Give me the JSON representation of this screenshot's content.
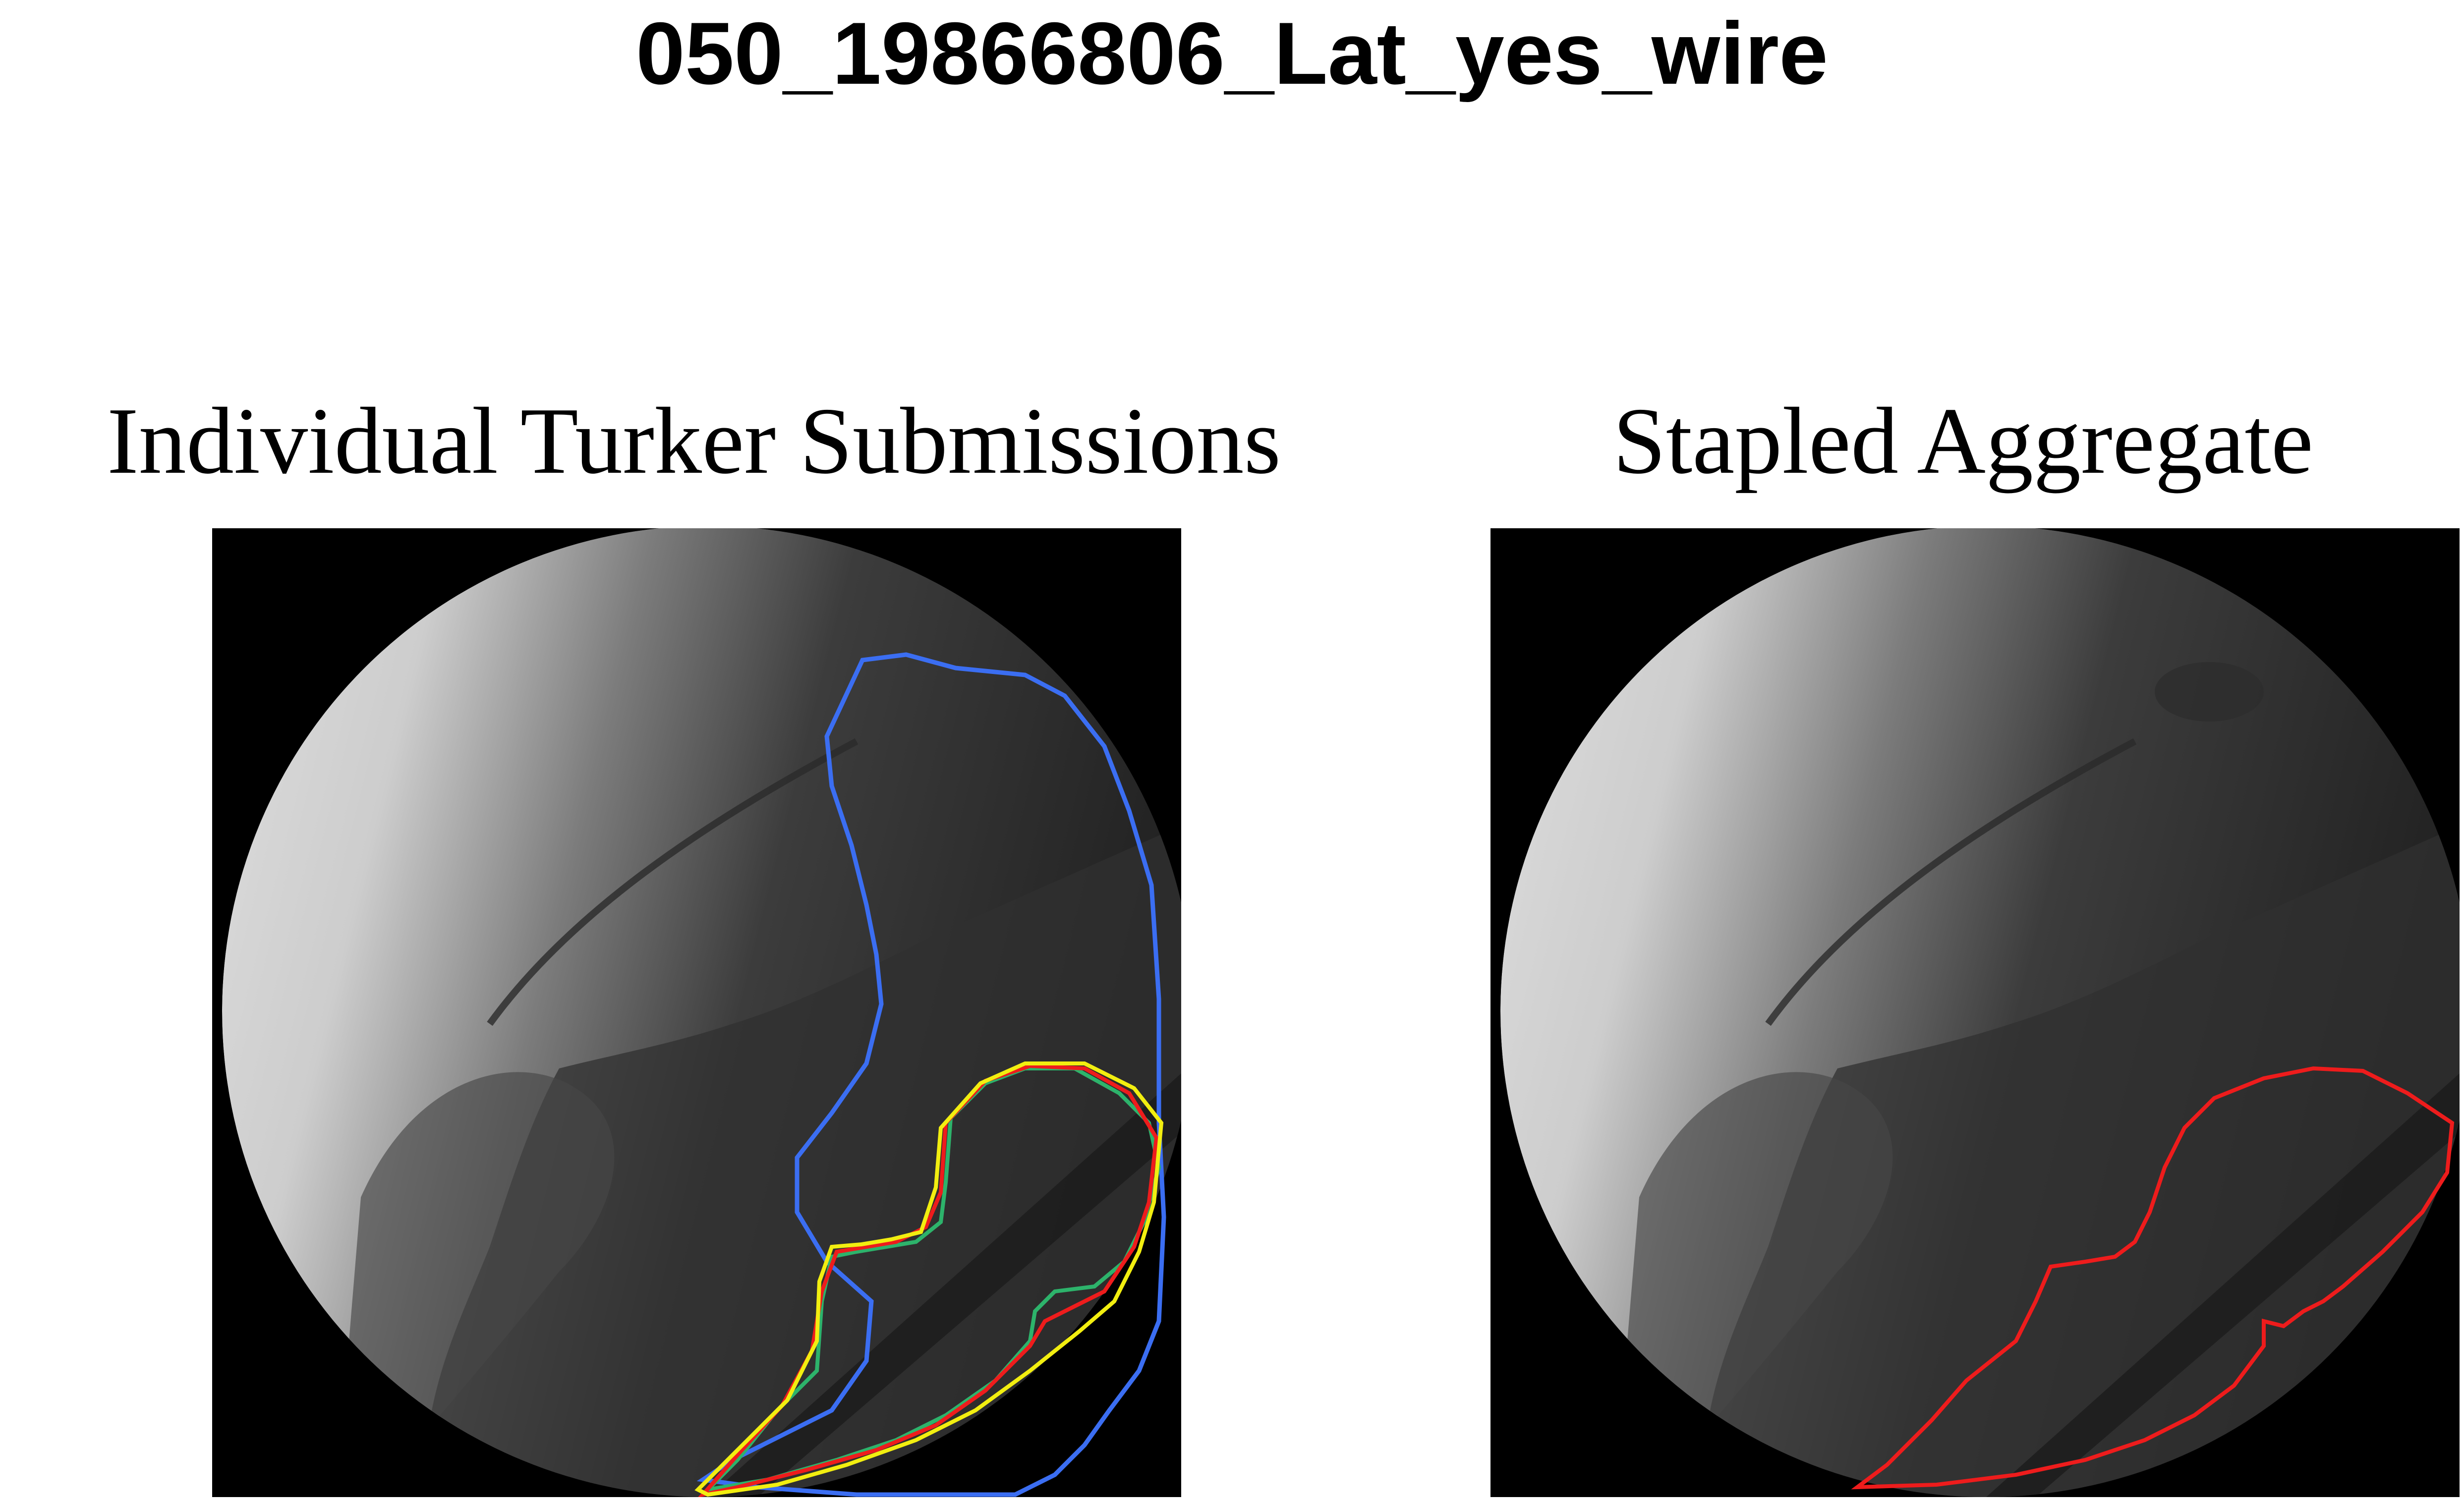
{
  "figure": {
    "title": "050_19866806_Lat_yes_wire",
    "panels": [
      {
        "title": "Individual Turker Submissions",
        "content": "fluoroscopic X-ray image with multiple colored segmentation outlines",
        "outline_colors": [
          "#3b6ef2",
          "#2db36b",
          "#ee1c1c",
          "#f2ee10"
        ]
      },
      {
        "title": "Stapled Aggregate",
        "content": "fluoroscopic X-ray image with single aggregated segmentation outline",
        "outline_colors": [
          "#ee1c1c"
        ]
      }
    ]
  }
}
